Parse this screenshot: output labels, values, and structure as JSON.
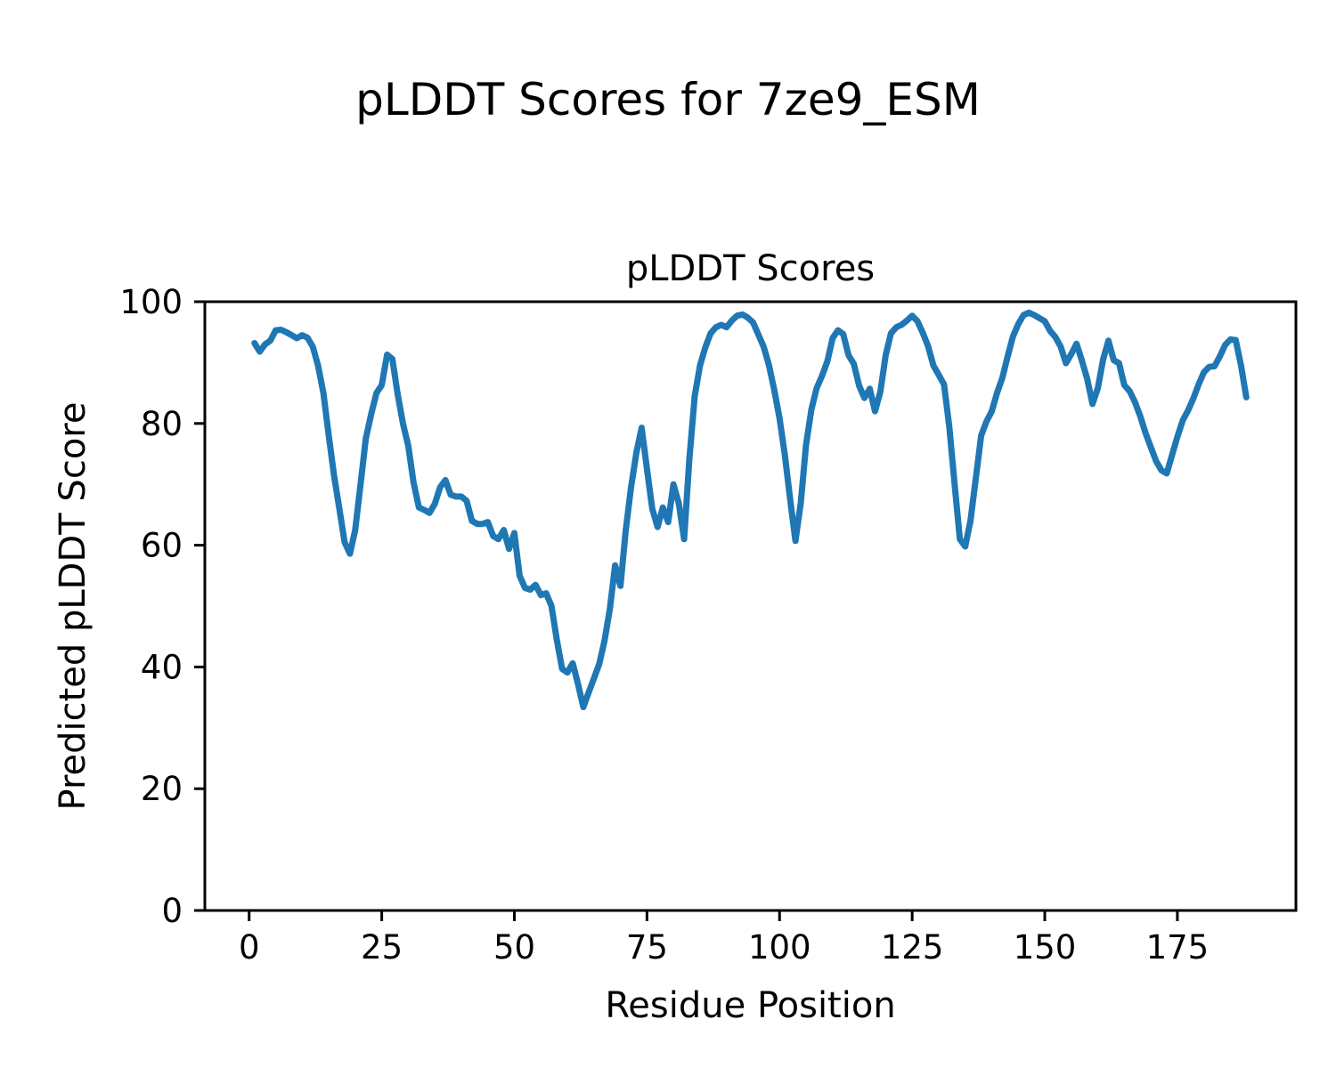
{
  "figure": {
    "suptitle": "pLDDT Scores for 7ze9_ESM"
  },
  "chart_data": {
    "type": "line",
    "title": "pLDDT Scores",
    "xlabel": "Residue Position",
    "ylabel": "Predicted pLDDT Score",
    "line_color": "#1f77b4",
    "grid": false,
    "legend": null,
    "xlim": [
      -8.35,
      197.35
    ],
    "ylim": [
      0,
      100
    ],
    "xticks": [
      0,
      25,
      50,
      75,
      100,
      125,
      150,
      175
    ],
    "yticks": [
      0,
      20,
      40,
      60,
      80,
      100
    ],
    "x": [
      1,
      2,
      3,
      4,
      5,
      6,
      7,
      8,
      9,
      10,
      11,
      12,
      13,
      14,
      15,
      16,
      17,
      18,
      19,
      20,
      21,
      22,
      23,
      24,
      25,
      26,
      27,
      28,
      29,
      30,
      31,
      32,
      33,
      34,
      35,
      36,
      37,
      38,
      39,
      40,
      41,
      42,
      43,
      44,
      45,
      46,
      47,
      48,
      49,
      50,
      51,
      52,
      53,
      54,
      55,
      56,
      57,
      58,
      59,
      60,
      61,
      62,
      63,
      64,
      65,
      66,
      67,
      68,
      69,
      70,
      71,
      72,
      73,
      74,
      75,
      76,
      77,
      78,
      79,
      80,
      81,
      82,
      83,
      84,
      85,
      86,
      87,
      88,
      89,
      90,
      91,
      92,
      93,
      94,
      95,
      96,
      97,
      98,
      99,
      100,
      101,
      102,
      103,
      104,
      105,
      106,
      107,
      108,
      109,
      110,
      111,
      112,
      113,
      114,
      115,
      116,
      117,
      118,
      119,
      120,
      121,
      122,
      123,
      124,
      125,
      126,
      127,
      128,
      129,
      130,
      131,
      132,
      133,
      134,
      135,
      136,
      137,
      138,
      139,
      140,
      141,
      142,
      143,
      144,
      145,
      146,
      147,
      148,
      149,
      150,
      151,
      152,
      153,
      154,
      155,
      156,
      157,
      158,
      159,
      160,
      161,
      162,
      163,
      164,
      165,
      166,
      167,
      168,
      169,
      170,
      171,
      172,
      173,
      174,
      175,
      176,
      177,
      178,
      179,
      180,
      181,
      182,
      183,
      184,
      185,
      186,
      187,
      188
    ],
    "y": [
      93.2,
      91.8,
      93.0,
      93.6,
      95.3,
      95.4,
      95.0,
      94.5,
      94.0,
      94.5,
      94.1,
      92.6,
      89.5,
      85.0,
      78.0,
      71.5,
      66.0,
      60.5,
      58.6,
      62.5,
      70.0,
      77.5,
      81.5,
      85.0,
      86.3,
      91.3,
      90.6,
      84.8,
      80.0,
      76.3,
      70.3,
      66.2,
      65.8,
      65.3,
      66.8,
      69.5,
      70.7,
      68.3,
      68.0,
      68.0,
      67.3,
      64.0,
      63.5,
      63.5,
      63.8,
      61.5,
      61.0,
      62.5,
      59.4,
      62.0,
      55.0,
      53.0,
      52.7,
      53.5,
      51.8,
      52.1,
      50.0,
      44.5,
      39.7,
      39.1,
      40.6,
      37.2,
      33.4,
      35.8,
      38.1,
      40.5,
      44.3,
      49.5,
      56.7,
      53.3,
      62.5,
      69.5,
      75.2,
      79.3,
      72.5,
      66.0,
      63.0,
      66.2,
      63.8,
      70.0,
      66.9,
      61.0,
      74.2,
      84.5,
      89.5,
      92.5,
      94.8,
      95.8,
      96.2,
      95.8,
      96.9,
      97.7,
      97.9,
      97.4,
      96.6,
      94.6,
      92.6,
      89.6,
      85.5,
      80.8,
      74.8,
      67.5,
      60.7,
      67.0,
      76.5,
      82.3,
      85.8,
      87.8,
      90.2,
      94.0,
      95.3,
      94.7,
      91.2,
      89.8,
      86.2,
      84.2,
      85.7,
      82.0,
      85.2,
      91.2,
      94.8,
      95.8,
      96.2,
      96.9,
      97.7,
      96.8,
      94.9,
      92.7,
      89.5,
      88.0,
      86.4,
      79.5,
      70.0,
      61.0,
      59.8,
      64.0,
      71.0,
      78.0,
      80.3,
      82.0,
      85.0,
      87.5,
      91.0,
      94.3,
      96.3,
      97.8,
      98.2,
      97.8,
      97.3,
      96.8,
      95.2,
      94.2,
      92.6,
      89.9,
      91.4,
      93.1,
      90.3,
      87.3,
      83.2,
      85.8,
      90.5,
      93.6,
      90.4,
      89.9,
      86.3,
      85.3,
      83.5,
      81.2,
      78.4,
      76.1,
      73.8,
      72.3,
      71.8,
      74.8,
      77.8,
      80.5,
      82.1,
      84.1,
      86.4,
      88.4,
      89.3,
      89.4,
      91.0,
      92.9,
      93.8,
      93.7,
      89.5,
      84.3
    ]
  }
}
